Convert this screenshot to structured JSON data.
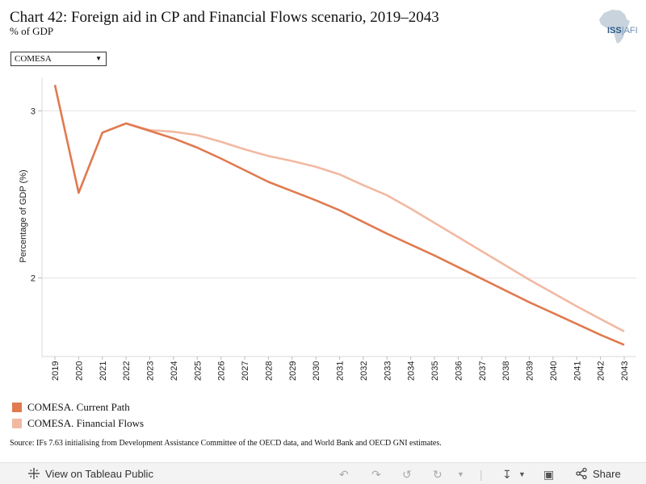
{
  "header": {
    "title": "Chart 42: Foreign aid in CP and Financial Flows scenario, 2019–2043",
    "subtitle": "% of GDP"
  },
  "logo": {
    "text_main": "ISS",
    "text_sub": "AFI"
  },
  "filter": {
    "selected": "COMESA"
  },
  "chart_data": {
    "type": "line",
    "ylabel": "Percentage of GDP (%)",
    "x": [
      "2019",
      "2020",
      "2021",
      "2022",
      "2023",
      "2024",
      "2025",
      "2026",
      "2027",
      "2028",
      "2029",
      "2030",
      "2031",
      "2032",
      "2033",
      "2034",
      "2035",
      "2036",
      "2037",
      "2038",
      "2039",
      "2040",
      "2041",
      "2042",
      "2043"
    ],
    "y_ticks": [
      2,
      3
    ],
    "ylim": [
      1.53,
      3.2
    ],
    "grid": true,
    "legend_position": "bottom-left",
    "series": [
      {
        "name": "COMESA. Current Path",
        "color": "#e07a4f",
        "values": [
          3.155,
          2.51,
          2.87,
          2.925,
          2.88,
          2.835,
          2.78,
          2.715,
          2.645,
          2.575,
          2.52,
          2.465,
          2.405,
          2.335,
          2.265,
          2.2,
          2.135,
          2.065,
          1.995,
          1.925,
          1.855,
          1.79,
          1.725,
          1.66,
          1.6
        ]
      },
      {
        "name": "COMESA. Financial Flows",
        "color": "#f2b9a2",
        "values": [
          null,
          null,
          null,
          2.925,
          2.885,
          2.875,
          2.855,
          2.815,
          2.77,
          2.73,
          2.7,
          2.665,
          2.62,
          2.555,
          2.495,
          2.415,
          2.33,
          2.245,
          2.16,
          2.075,
          1.99,
          1.91,
          1.83,
          1.755,
          1.68
        ]
      }
    ]
  },
  "source": "Source: IFs 7.63 initialising from Development Assistance Committee of the OECD data, and World Bank and OECD GNI estimates.",
  "footer": {
    "view_label": "View on Tableau Public",
    "share_label": "Share"
  }
}
